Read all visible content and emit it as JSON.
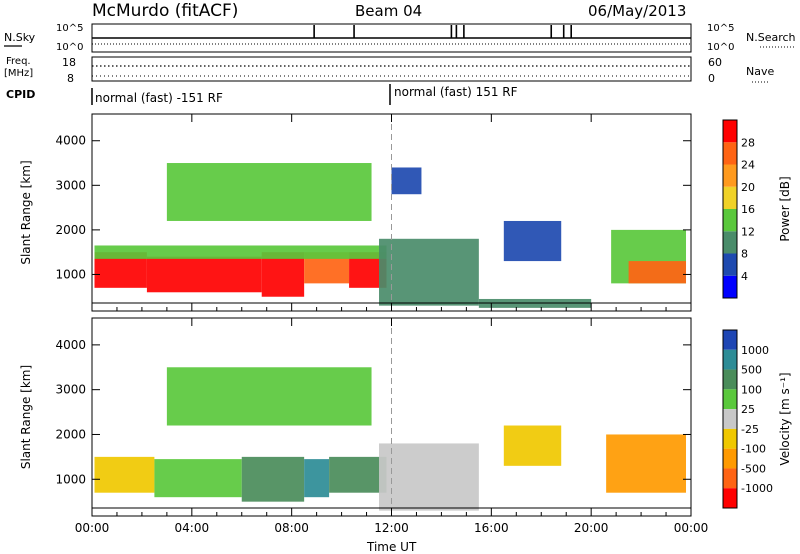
{
  "header": {
    "station": "McMurdo (fitACF)",
    "beam": "Beam 04",
    "date": "06/May/2013"
  },
  "top_panels": {
    "nsky_label": "N.Sky",
    "nsearch_label": "N.Search",
    "noise_ticks": [
      "10^5",
      "10^0"
    ],
    "freq_label_1": "Freq.",
    "freq_label_2": "[MHz]",
    "freq_ticks": [
      "18",
      "8"
    ],
    "nave_label": "Nave",
    "nave_ticks": [
      "60",
      "0"
    ],
    "cpid_label": "CPID",
    "cpid_segments": [
      {
        "label": "normal (fast) -151 RF",
        "start_hour": 0,
        "end_hour": 12
      },
      {
        "label": "normal (fast) 151 RF",
        "start_hour": 12,
        "end_hour": 24
      }
    ]
  },
  "colorbars": {
    "power": {
      "title": "Power [dB]",
      "ticks": [
        "4",
        "8",
        "12",
        "16",
        "20",
        "24",
        "28"
      ],
      "colors": [
        "#0000ff",
        "#1e4ab0",
        "#4a8c6a",
        "#5ac83c",
        "#f0d228",
        "#ff9a1e",
        "#ff6414",
        "#ff0000"
      ]
    },
    "velocity": {
      "title": "Velocity [m s⁻¹]",
      "ticks": [
        "1000",
        "500",
        "100",
        "25",
        "-25",
        "-100",
        "-500",
        "-1000"
      ],
      "colors": [
        "#1e46b4",
        "#2d8c96",
        "#4a8c5a",
        "#5ac83c",
        "#c8c8c8",
        "#f0c800",
        "#ff9a00",
        "#ff6414",
        "#ff0000"
      ]
    }
  },
  "chart_data": [
    {
      "type": "heatmap",
      "title": "",
      "xlabel": "Time UT",
      "ylabel": "Slant Range [km]",
      "x_ticks": [
        "00:00",
        "04:00",
        "08:00",
        "12:00",
        "16:00",
        "20:00",
        "00:00"
      ],
      "y_ticks": [
        "1000",
        "2000",
        "3000",
        "4000"
      ],
      "xlim": [
        0,
        24
      ],
      "ylim": [
        180,
        4600
      ],
      "colorbar": "Power [dB]",
      "regions": [
        {
          "x0": 0.1,
          "x1": 2.2,
          "y0": 700,
          "y1": 1500,
          "value": 28
        },
        {
          "x0": 2.2,
          "x1": 6.8,
          "y0": 600,
          "y1": 1400,
          "value": 28
        },
        {
          "x0": 6.8,
          "x1": 8.5,
          "y0": 500,
          "y1": 1500,
          "value": 28
        },
        {
          "x0": 8.5,
          "x1": 10.3,
          "y0": 800,
          "y1": 1500,
          "value": 24
        },
        {
          "x0": 10.3,
          "x1": 11.8,
          "y0": 700,
          "y1": 1500,
          "value": 28
        },
        {
          "x0": 0.1,
          "x1": 11.8,
          "y0": 1350,
          "y1": 1650,
          "value": 14
        },
        {
          "x0": 11.5,
          "x1": 15.5,
          "y0": 300,
          "y1": 1800,
          "value": 8
        },
        {
          "x0": 15.5,
          "x1": 20.0,
          "y0": 250,
          "y1": 450,
          "value": 8
        },
        {
          "x0": 16.5,
          "x1": 18.8,
          "y0": 1300,
          "y1": 2200,
          "value": 6
        },
        {
          "x0": 20.8,
          "x1": 23.8,
          "y0": 800,
          "y1": 2000,
          "value": 14
        },
        {
          "x0": 21.5,
          "x1": 23.8,
          "y0": 800,
          "y1": 1300,
          "value": 26
        },
        {
          "x0": 3.0,
          "x1": 11.2,
          "y0": 2200,
          "y1": 3500,
          "value": 12
        },
        {
          "x0": 12.0,
          "x1": 13.2,
          "y0": 2800,
          "y1": 3400,
          "value": 6
        }
      ]
    },
    {
      "type": "heatmap",
      "title": "",
      "xlabel": "Time UT",
      "ylabel": "Slant Range [km]",
      "x_ticks": [
        "00:00",
        "04:00",
        "08:00",
        "12:00",
        "16:00",
        "20:00",
        "00:00"
      ],
      "y_ticks": [
        "1000",
        "2000",
        "3000",
        "4000"
      ],
      "xlim": [
        0,
        24
      ],
      "ylim": [
        180,
        4600
      ],
      "colorbar": "Velocity [m s⁻¹]",
      "regions": [
        {
          "x0": 0.1,
          "x1": 2.5,
          "y0": 700,
          "y1": 1500,
          "value": -100
        },
        {
          "x0": 2.5,
          "x1": 6.0,
          "y0": 600,
          "y1": 1450,
          "value": 60
        },
        {
          "x0": 6.0,
          "x1": 8.5,
          "y0": 500,
          "y1": 1500,
          "value": 100
        },
        {
          "x0": 8.5,
          "x1": 9.5,
          "y0": 600,
          "y1": 1450,
          "value": 500
        },
        {
          "x0": 9.5,
          "x1": 11.8,
          "y0": 700,
          "y1": 1500,
          "value": 100
        },
        {
          "x0": 11.5,
          "x1": 15.5,
          "y0": 300,
          "y1": 1800,
          "value": -25
        },
        {
          "x0": 16.5,
          "x1": 18.8,
          "y0": 1300,
          "y1": 2200,
          "value": -100
        },
        {
          "x0": 20.6,
          "x1": 23.8,
          "y0": 700,
          "y1": 2000,
          "value": -500
        },
        {
          "x0": 3.0,
          "x1": 11.2,
          "y0": 2200,
          "y1": 3500,
          "value": 25
        }
      ]
    }
  ]
}
